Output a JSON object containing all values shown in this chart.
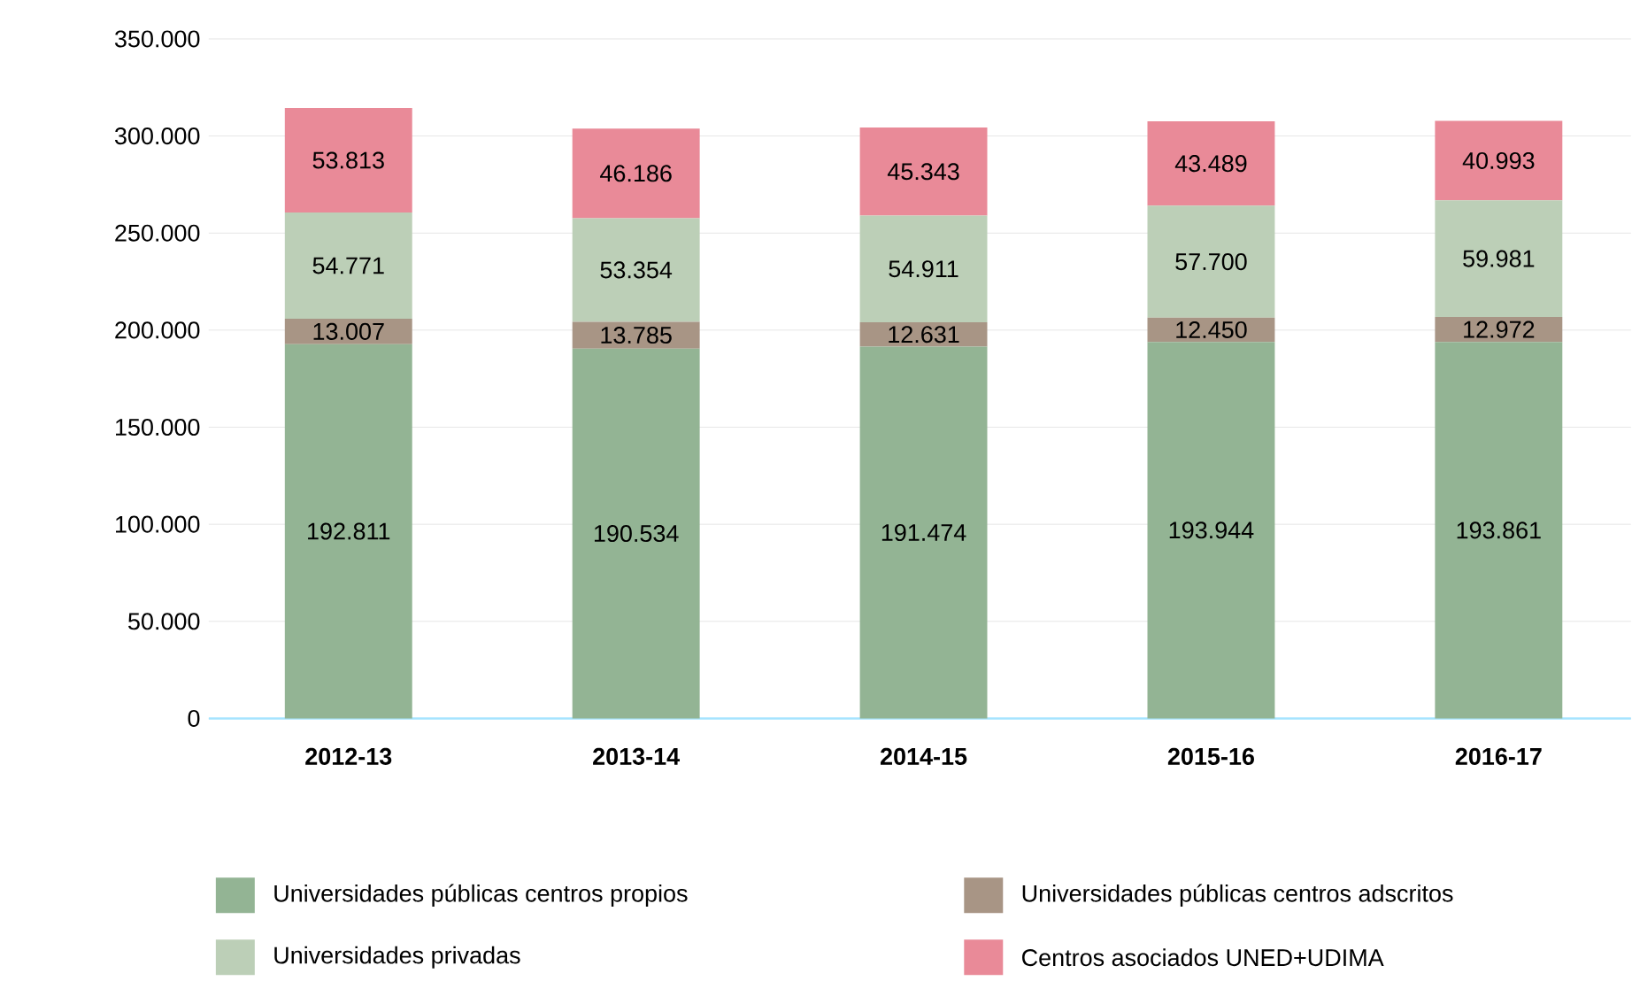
{
  "chart_data": {
    "type": "bar",
    "stacked": true,
    "categories": [
      "2012-13",
      "2013-14",
      "2014-15",
      "2015-16",
      "2016-17"
    ],
    "series": [
      {
        "name": "Universidades públicas centros propios",
        "color": "#93b494",
        "values": [
          192811,
          190534,
          191474,
          193944,
          193861
        ],
        "value_labels": [
          "192.811",
          "190.534",
          "191.474",
          "193.944",
          "193.861"
        ]
      },
      {
        "name": "Universidades públicas centros adscritos",
        "color": "#a89585",
        "values": [
          13007,
          13785,
          12631,
          12450,
          12972
        ],
        "value_labels": [
          "13.007",
          "13.785",
          "12.631",
          "12.450",
          "12.972"
        ]
      },
      {
        "name": "Universidades privadas",
        "color": "#bccfb7",
        "values": [
          54771,
          53354,
          54911,
          57700,
          59981
        ],
        "value_labels": [
          "54.771",
          "53.354",
          "54.911",
          "57.700",
          "59.981"
        ]
      },
      {
        "name": "Centros asociados UNED+UDIMA",
        "color": "#e98a98",
        "values": [
          53813,
          46186,
          45343,
          43489,
          40993
        ],
        "value_labels": [
          "53.813",
          "46.186",
          "45.343",
          "43.489",
          "40.993"
        ]
      }
    ],
    "ylim": [
      0,
      350000
    ],
    "yticks": [
      0,
      {
        "value": 50000,
        "label": "50.000"
      },
      {
        "value": 100000,
        "label": "100.000"
      },
      {
        "value": 150000,
        "label": "150.000"
      },
      {
        "value": 200000,
        "label": "200.000"
      },
      {
        "value": 250000,
        "label": "250.000"
      },
      {
        "value": 300000,
        "label": "300.000"
      },
      {
        "value": 350000,
        "label": "350.000"
      }
    ],
    "grid": "y",
    "legend": "bottom"
  }
}
